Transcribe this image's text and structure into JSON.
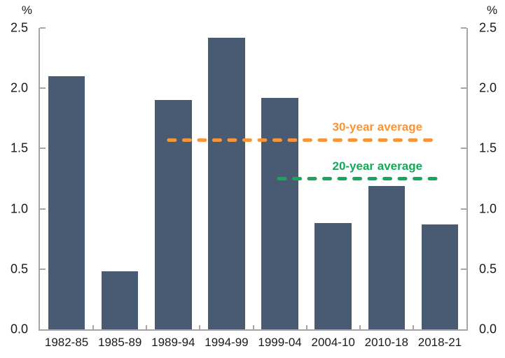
{
  "chart_data": {
    "type": "bar",
    "unit_left": "%",
    "unit_right": "%",
    "categories": [
      "1982-85",
      "1985-89",
      "1989-94",
      "1994-99",
      "1999-04",
      "2004-10",
      "2010-18",
      "2018-21"
    ],
    "values": [
      2.1,
      0.48,
      1.9,
      2.42,
      1.92,
      0.88,
      1.19,
      0.87
    ],
    "ylim": [
      0,
      2.5
    ],
    "y_ticks": [
      "0.0",
      "0.5",
      "1.0",
      "1.5",
      "2.0",
      "2.5"
    ],
    "bar_color": "#495b72",
    "axis_color": "#a6a6a6",
    "text_color": "#1a1a1a",
    "grid": false,
    "legend_position": "none",
    "reference_lines": [
      {
        "label": "30-year average",
        "value": 1.57,
        "color": "#f7953a",
        "x_start_frac": 0.302,
        "x_end_frac": 0.936
      },
      {
        "label": "20-year average",
        "value": 1.25,
        "color": "#17a75c",
        "x_start_frac": 0.56,
        "x_end_frac": 0.936
      }
    ]
  }
}
